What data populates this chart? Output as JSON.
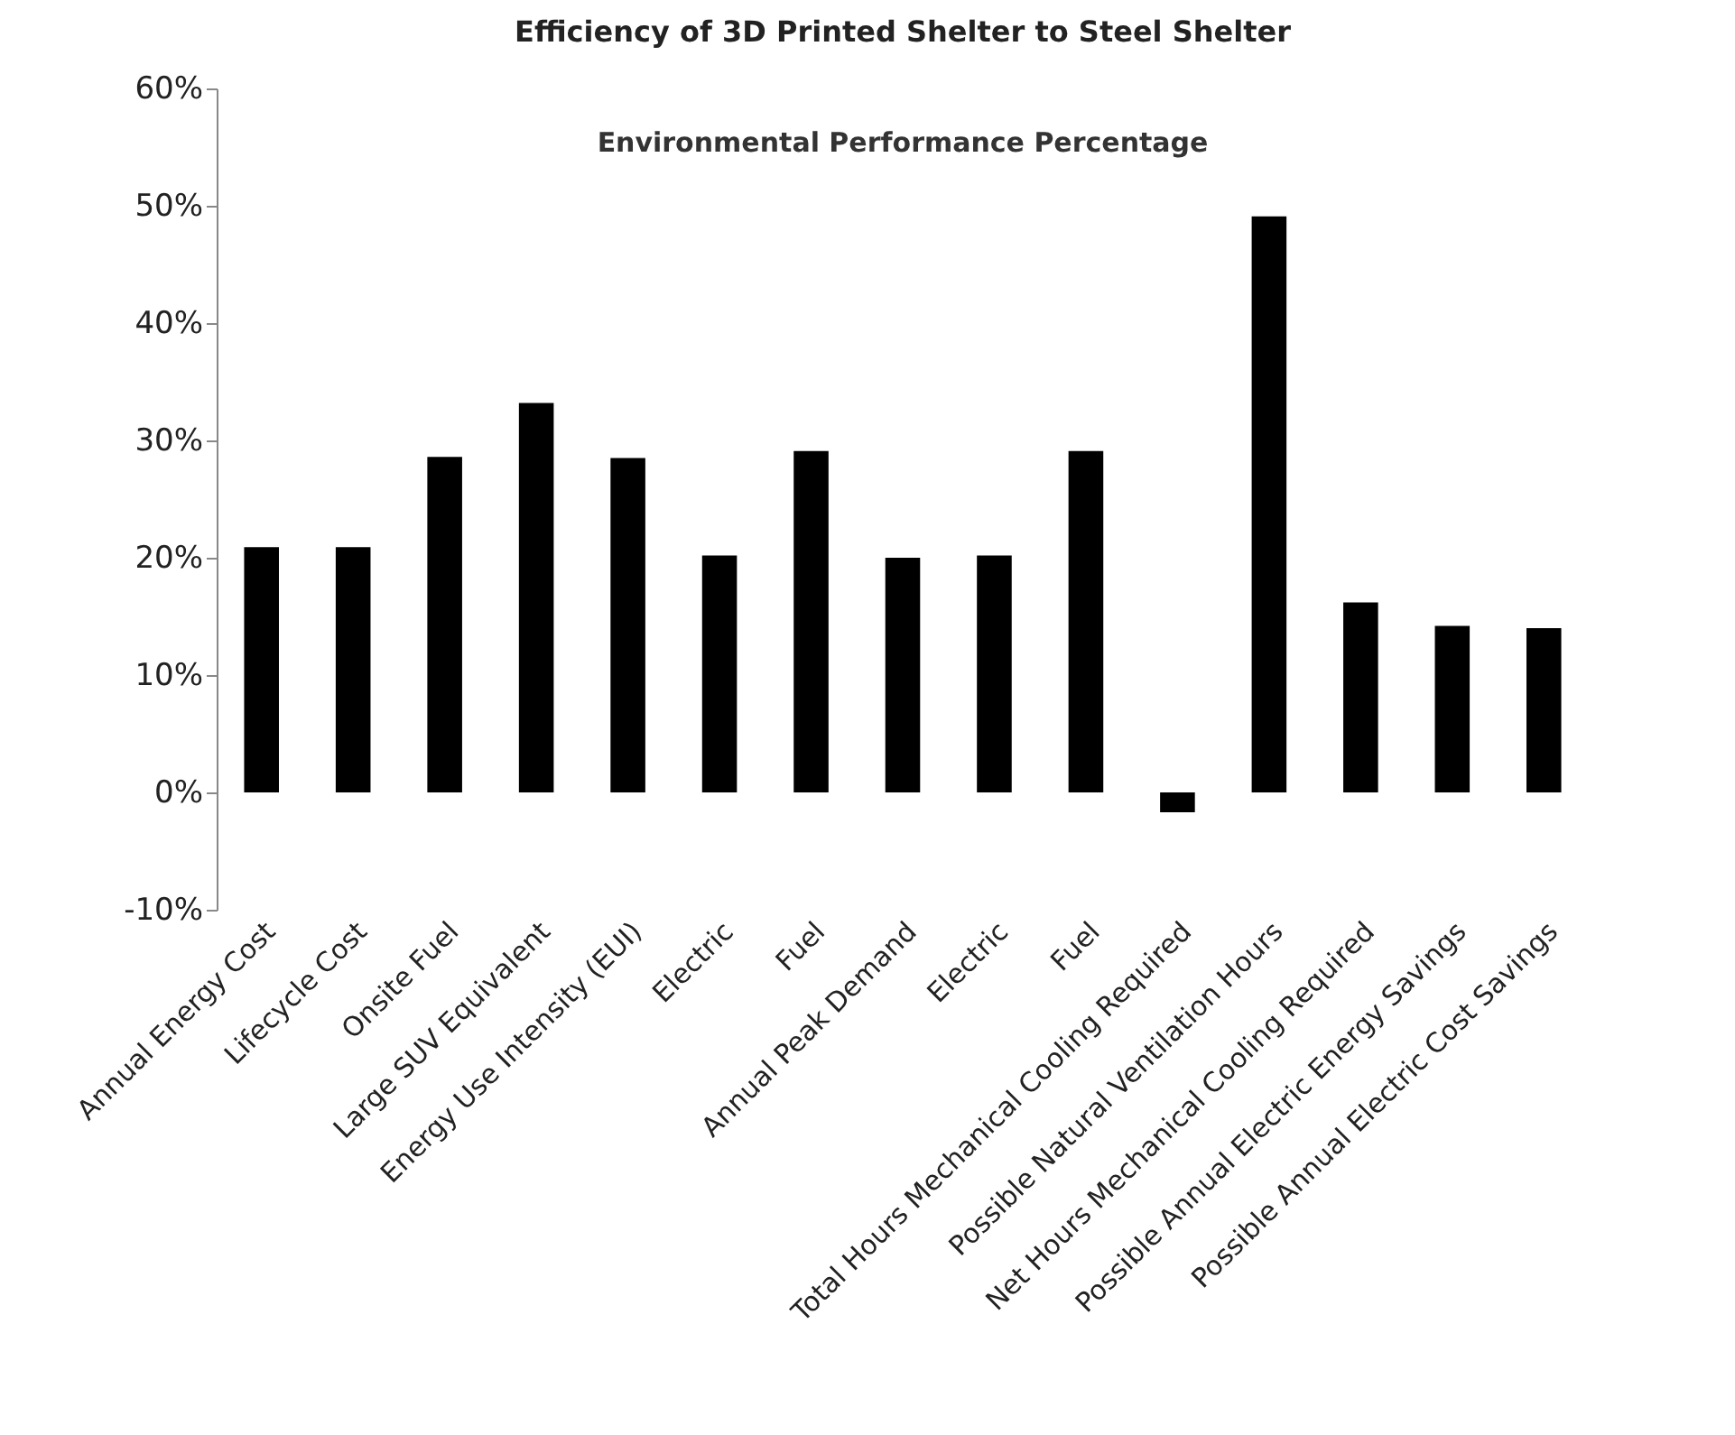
{
  "chart_data": {
    "type": "bar",
    "title": "Efficiency of 3D Printed Shelter to Steel Shelter",
    "subtitle": "Environmental Performance Percentage",
    "categories": [
      "Annual Energy Cost",
      "Lifecycle Cost",
      "Onsite Fuel",
      "Large SUV Equivalent",
      "Energy Use Intensity (EUI)",
      "Electric",
      "Fuel",
      "Annual Peak Demand",
      "Electric",
      "Fuel",
      "Total Hours Mechanical Cooling Required",
      "Possible Natural Ventilation Hours",
      "Net Hours Mechanical Cooling Required",
      "Possible Annual Electric Energy Savings",
      "Possible Annual Electric Cost Savings"
    ],
    "values": [
      20.9,
      20.9,
      28.6,
      33.2,
      28.5,
      20.2,
      29.1,
      20.0,
      20.2,
      29.1,
      -1.7,
      49.1,
      16.2,
      14.2,
      14.0
    ],
    "color": "#000000",
    "ylim": [
      -10,
      60
    ],
    "yticks": [
      {
        "value": -10,
        "label": "-10%"
      },
      {
        "value": 0,
        "label": "0%"
      },
      {
        "value": 10,
        "label": "10%"
      },
      {
        "value": 20,
        "label": "20%"
      },
      {
        "value": 30,
        "label": "30%"
      },
      {
        "value": 40,
        "label": "40%"
      },
      {
        "value": 50,
        "label": "50%"
      },
      {
        "value": 60,
        "label": "60%"
      }
    ],
    "grid": false
  }
}
